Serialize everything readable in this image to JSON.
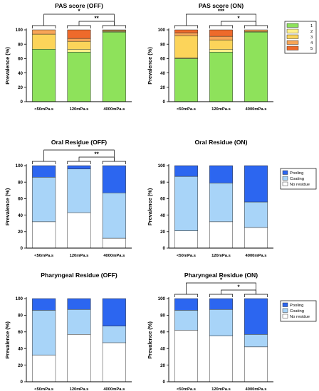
{
  "colors": {
    "pas_1": "#8ee25b",
    "pas_2": "#fff08a",
    "pas_3": "#fcd45a",
    "pas_4": "#f7a557",
    "pas_5": "#ee6a2b",
    "no_residue": "#ffffff",
    "coating": "#a8d4f8",
    "pooling": "#2c66f0"
  },
  "chart_data": [
    {
      "type": "bar",
      "stacked": true,
      "title": "PAS score (OFF)",
      "ylabel": "Prevalence (%)",
      "ylim": [
        0,
        100
      ],
      "yticks": [
        "0",
        "20",
        "40",
        "60",
        "80",
        "100"
      ],
      "categories": [
        "<50mPa.s",
        "120mPa.s",
        "4000mPa.s"
      ],
      "series": [
        {
          "name": "1",
          "color": "#8ee25b",
          "values": [
            73,
            69,
            97
          ]
        },
        {
          "name": "2",
          "color": "#fff08a",
          "values": [
            0,
            4,
            1
          ]
        },
        {
          "name": "3",
          "color": "#fcd45a",
          "values": [
            21,
            11,
            1
          ]
        },
        {
          "name": "4",
          "color": "#f7a557",
          "values": [
            6,
            4,
            1
          ]
        },
        {
          "name": "5",
          "color": "#ee6a2b",
          "values": [
            0,
            12,
            0
          ]
        }
      ],
      "legend": "right",
      "significance": [
        {
          "from": 0,
          "to": 2,
          "label": "*"
        },
        {
          "from": 1,
          "to": 2,
          "label": "**"
        }
      ]
    },
    {
      "type": "bar",
      "stacked": true,
      "title": "PAS score (ON)",
      "ylabel": "Prevalence (%)",
      "ylim": [
        0,
        100
      ],
      "yticks": [
        "0",
        "20",
        "40",
        "60",
        "80",
        "100"
      ],
      "categories": [
        "<50mPa.s",
        "120mPa.s",
        "4000mPa.s"
      ],
      "series": [
        {
          "name": "1",
          "color": "#8ee25b",
          "values": [
            60,
            69,
            97
          ]
        },
        {
          "name": "2",
          "color": "#fff08a",
          "values": [
            1,
            4,
            0
          ]
        },
        {
          "name": "3",
          "color": "#fcd45a",
          "values": [
            31,
            13,
            1
          ]
        },
        {
          "name": "4",
          "color": "#f7a557",
          "values": [
            4,
            5,
            2
          ]
        },
        {
          "name": "5",
          "color": "#ee6a2b",
          "values": [
            4,
            9,
            0
          ]
        }
      ],
      "significance": [
        {
          "from": 0,
          "to": 2,
          "label": "***"
        },
        {
          "from": 1,
          "to": 2,
          "label": "*"
        }
      ]
    },
    {
      "type": "bar",
      "stacked": true,
      "title": "Oral Residue (OFF)",
      "ylabel": "Prevalence (%)",
      "ylim": [
        0,
        100
      ],
      "yticks": [
        "0",
        "20",
        "40",
        "60",
        "80",
        "100"
      ],
      "categories": [
        "<50mPa.s",
        "120mPa.s",
        "4000mPa.s"
      ],
      "series": [
        {
          "name": "No residue",
          "color": "#ffffff",
          "values": [
            32,
            43,
            12
          ]
        },
        {
          "name": "Coating",
          "color": "#a8d4f8",
          "values": [
            54,
            53,
            55
          ]
        },
        {
          "name": "Pooling",
          "color": "#2c66f0",
          "values": [
            14,
            4,
            33
          ]
        }
      ],
      "significance": [
        {
          "from": 0,
          "to": 2,
          "label": "*"
        },
        {
          "from": 1,
          "to": 2,
          "label": "**"
        }
      ]
    },
    {
      "type": "bar",
      "stacked": true,
      "title": "Oral Residue (ON)",
      "ylabel": "Prevalence (%)",
      "ylim": [
        0,
        100
      ],
      "yticks": [
        "0",
        "20",
        "40",
        "60",
        "80",
        "100"
      ],
      "categories": [
        "<50mPa.s",
        "120mPa.s",
        "4000mPa.s"
      ],
      "series": [
        {
          "name": "No residue",
          "color": "#ffffff",
          "values": [
            21,
            32,
            25
          ]
        },
        {
          "name": "Coating",
          "color": "#a8d4f8",
          "values": [
            66,
            47,
            31
          ]
        },
        {
          "name": "Pooling",
          "color": "#2c66f0",
          "values": [
            13,
            21,
            44
          ]
        }
      ],
      "legend": "right",
      "significance": []
    },
    {
      "type": "bar",
      "stacked": true,
      "title": "Pharyngeal Residue (OFF)",
      "ylabel": "Prevalence (%)",
      "ylim": [
        0,
        100
      ],
      "yticks": [
        "0",
        "20",
        "40",
        "60",
        "80",
        "100"
      ],
      "categories": [
        "<50mPa.s",
        "120mPa.s",
        "4000mPa.s"
      ],
      "series": [
        {
          "name": "No residue",
          "color": "#ffffff",
          "values": [
            32,
            57,
            47
          ]
        },
        {
          "name": "Coating",
          "color": "#a8d4f8",
          "values": [
            54,
            30,
            20
          ]
        },
        {
          "name": "Pooling",
          "color": "#2c66f0",
          "values": [
            14,
            13,
            33
          ]
        }
      ],
      "significance": []
    },
    {
      "type": "bar",
      "stacked": true,
      "title": "Pharyngeal Residue (ON)",
      "ylabel": "Prevalence (%)",
      "ylim": [
        0,
        100
      ],
      "yticks": [
        "0",
        "20",
        "40",
        "60",
        "80",
        "100"
      ],
      "categories": [
        "<50mPa.s",
        "120mPa.s",
        "4000mPa.s"
      ],
      "series": [
        {
          "name": "No residue",
          "color": "#ffffff",
          "values": [
            62,
            55,
            42
          ]
        },
        {
          "name": "Coating",
          "color": "#a8d4f8",
          "values": [
            24,
            32,
            15
          ]
        },
        {
          "name": "Pooling",
          "color": "#2c66f0",
          "values": [
            14,
            13,
            43
          ]
        }
      ],
      "legend": "right",
      "significance": [
        {
          "from": 0,
          "to": 2,
          "label": "*"
        },
        {
          "from": 1,
          "to": 2,
          "label": "*"
        }
      ]
    }
  ]
}
